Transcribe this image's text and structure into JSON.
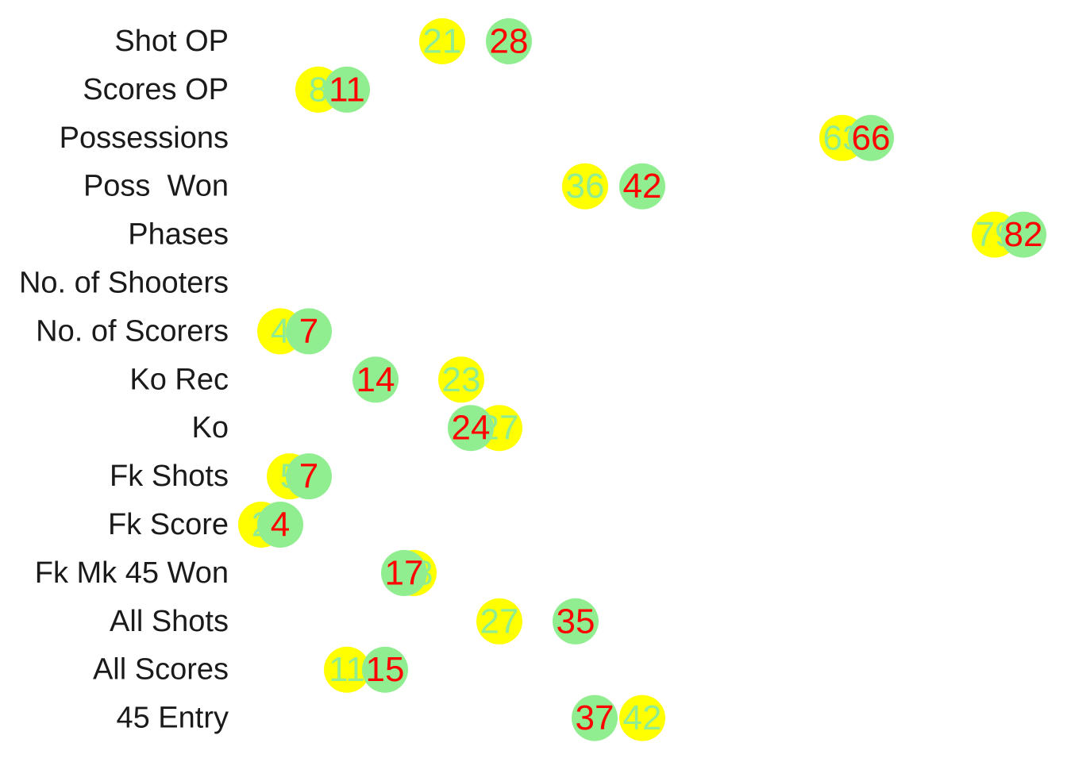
{
  "chart_data": {
    "type": "scatter",
    "title": "",
    "xlabel": "",
    "ylabel": "",
    "xlim": [
      0,
      85
    ],
    "grid": false,
    "legend": "none",
    "categories": [
      "Shot OP",
      "Scores OP",
      "Possessions",
      "Poss  Won",
      "Phases",
      "No. of Shooters",
      "No. of Scorers",
      "Ko Rec",
      "Ko",
      "Fk Shots",
      "Fk Score",
      "Fk Mk 45 Won",
      "All Shots",
      "All Scores",
      "45 Entry"
    ],
    "series": [
      {
        "marker_color": "#ffff00",
        "label_color": "#90ee90",
        "values": [
          21,
          8,
          63,
          36,
          79,
          null,
          4,
          23,
          27,
          5,
          2,
          18,
          27,
          11,
          42
        ]
      },
      {
        "marker_color": "#90ee90",
        "label_color": "#ff0000",
        "values": [
          28,
          11,
          66,
          42,
          82,
          null,
          7,
          14,
          24,
          7,
          4,
          17,
          35,
          15,
          37
        ]
      }
    ]
  }
}
